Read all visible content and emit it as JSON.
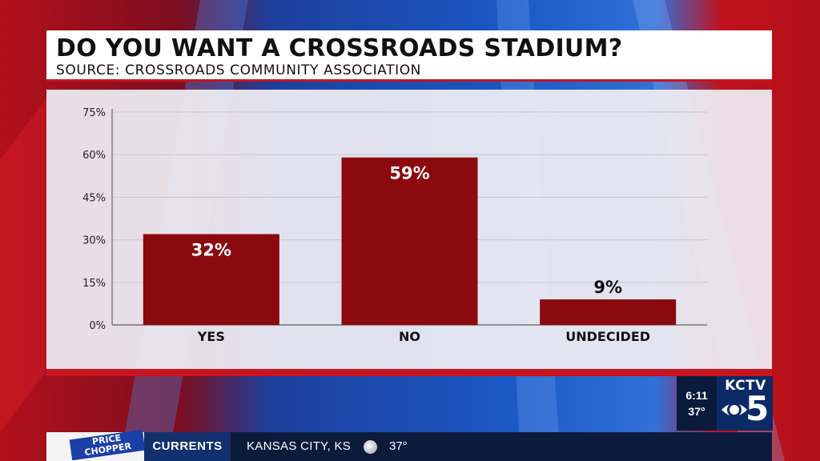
{
  "graphic": {
    "title": "DO YOU WANT A CROSSROADS STADIUM?",
    "subtitle": "SOURCE: CROSSROADS COMMUNITY ASSOCIATION"
  },
  "colors": {
    "bar": "#8b0a0f",
    "accent_red": "#c8141e",
    "navy": "#0c1a3c",
    "value_inside": "#ffffff",
    "value_outside": "#111111"
  },
  "chart_data": {
    "type": "bar",
    "title": "DO YOU WANT A CROSSROADS STADIUM?",
    "subtitle": "SOURCE: CROSSROADS COMMUNITY ASSOCIATION",
    "categories": [
      "YES",
      "NO",
      "UNDECIDED"
    ],
    "values": [
      32,
      59,
      9
    ],
    "value_labels": [
      "32%",
      "59%",
      "9%"
    ],
    "ylim": [
      0,
      75
    ],
    "yticks": [
      0,
      15,
      30,
      45,
      60,
      75
    ],
    "ytick_labels": [
      "0%",
      "15%",
      "30%",
      "45%",
      "60%",
      "75%"
    ],
    "xlabel": "",
    "ylabel": "",
    "grid": true,
    "legend": "none"
  },
  "station": {
    "name": "KCTV",
    "channel": "5",
    "time": "6:11",
    "temp": "37°",
    "icon": "cbs-eye-icon"
  },
  "ticker": {
    "sponsor": "PRICE CHOPPER",
    "section": "CURRENTS",
    "location": "KANSAS CITY, KS",
    "weather_icon": "cloudy-moon-icon",
    "temperature": "37°"
  }
}
